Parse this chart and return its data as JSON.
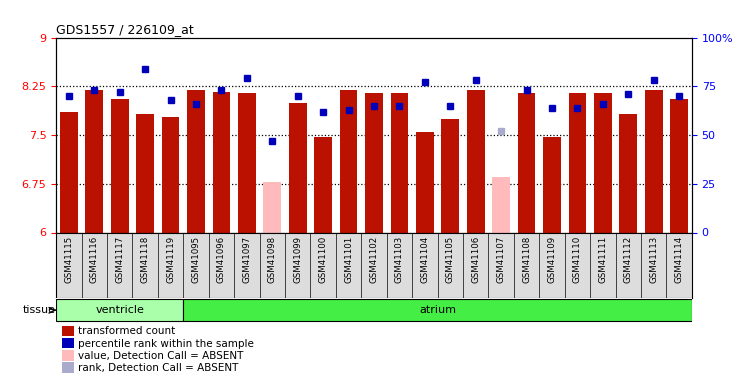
{
  "title": "GDS1557 / 226109_at",
  "samples": [
    "GSM41115",
    "GSM41116",
    "GSM41117",
    "GSM41118",
    "GSM41119",
    "GSM41095",
    "GSM41096",
    "GSM41097",
    "GSM41098",
    "GSM41099",
    "GSM41100",
    "GSM41101",
    "GSM41102",
    "GSM41103",
    "GSM41104",
    "GSM41105",
    "GSM41106",
    "GSM41107",
    "GSM41108",
    "GSM41109",
    "GSM41110",
    "GSM41111",
    "GSM41112",
    "GSM41113",
    "GSM41114"
  ],
  "bar_values": [
    7.85,
    8.19,
    8.06,
    7.82,
    7.77,
    8.19,
    8.16,
    8.15,
    6.78,
    8.0,
    7.47,
    8.19,
    8.14,
    8.15,
    7.54,
    7.75,
    8.19,
    6.86,
    8.15,
    7.47,
    8.15,
    8.14,
    7.83,
    8.19,
    8.06
  ],
  "absent_bar": [
    false,
    false,
    false,
    false,
    false,
    false,
    false,
    false,
    true,
    false,
    false,
    false,
    false,
    false,
    false,
    false,
    false,
    true,
    false,
    false,
    false,
    false,
    false,
    false,
    false
  ],
  "rank_values": [
    70,
    73,
    72,
    84,
    68,
    66,
    73,
    79,
    47,
    70,
    62,
    63,
    65,
    65,
    77,
    65,
    78,
    52,
    73,
    64,
    64,
    66,
    71,
    78,
    70
  ],
  "absent_rank": [
    false,
    false,
    false,
    false,
    false,
    false,
    false,
    false,
    false,
    false,
    false,
    false,
    false,
    false,
    false,
    false,
    false,
    true,
    false,
    false,
    false,
    false,
    false,
    false,
    false
  ],
  "tissue_groups": [
    {
      "label": "ventricle",
      "start": 0,
      "end": 4
    },
    {
      "label": "atrium",
      "start": 5,
      "end": 24
    }
  ],
  "ylim_left": [
    6,
    9
  ],
  "ylim_right": [
    0,
    100
  ],
  "yticks_left": [
    6,
    6.75,
    7.5,
    8.25,
    9
  ],
  "yticks_right": [
    0,
    25,
    50,
    75,
    100
  ],
  "ytick_labels_left": [
    "6",
    "6.75",
    "7.5",
    "8.25",
    "9"
  ],
  "ytick_labels_right": [
    "0",
    "25",
    "50",
    "75",
    "100%"
  ],
  "bar_color_normal": "#BB1100",
  "bar_color_absent": "#FFBBBB",
  "rank_color_normal": "#0000BB",
  "rank_color_absent": "#AAAACC",
  "legend_items": [
    {
      "color": "#BB1100",
      "label": "transformed count"
    },
    {
      "color": "#0000BB",
      "label": "percentile rank within the sample"
    },
    {
      "color": "#FFBBBB",
      "label": "value, Detection Call = ABSENT"
    },
    {
      "color": "#AAAACC",
      "label": "rank, Detection Call = ABSENT"
    }
  ],
  "tissue_label": "tissue",
  "ventricle_color": "#AAFFAA",
  "atrium_color": "#44EE44",
  "bg_color": "#FFFFFF",
  "plot_bg": "#FFFFFF",
  "xticklabel_bg": "#DDDDDD",
  "dotted_yvals": [
    6.75,
    7.5,
    8.25
  ]
}
